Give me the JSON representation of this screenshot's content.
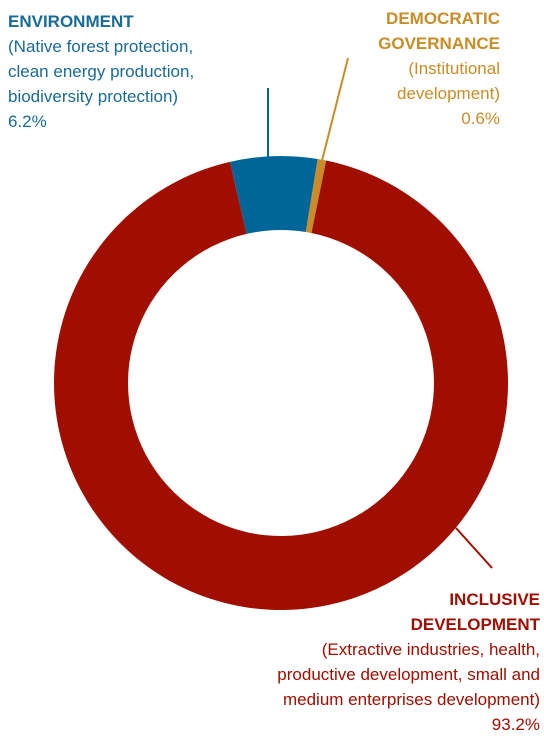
{
  "chart_data": {
    "type": "pie",
    "donut": true,
    "slices": [
      {
        "key": "environment",
        "title_lines": [
          "ENVIRONMENT"
        ],
        "desc_lines": [
          "(Native forest protection,",
          "clean energy production,",
          "biodiversity protection)"
        ],
        "pct_label": "6.2%",
        "value": 6.2,
        "color": "#006699"
      },
      {
        "key": "governance",
        "title_lines": [
          "DEMOCRATIC",
          "GOVERNANCE"
        ],
        "desc_lines": [
          "(Institutional",
          "development)"
        ],
        "pct_label": "0.6%",
        "value": 0.6,
        "color": "#c98c28"
      },
      {
        "key": "inclusive",
        "title_lines": [
          "INCLUSIVE",
          "DEVELOPMENT"
        ],
        "desc_lines": [
          "(Extractive industries, health,",
          "productive development, small and",
          "medium enterprises development)"
        ],
        "pct_label": "93.2%",
        "value": 93.2,
        "color": "#a00e00"
      }
    ]
  },
  "colors": {
    "environment_text": "#1a6a98",
    "governance_text": "#c98c28",
    "inclusive_text": "#a00e00"
  }
}
